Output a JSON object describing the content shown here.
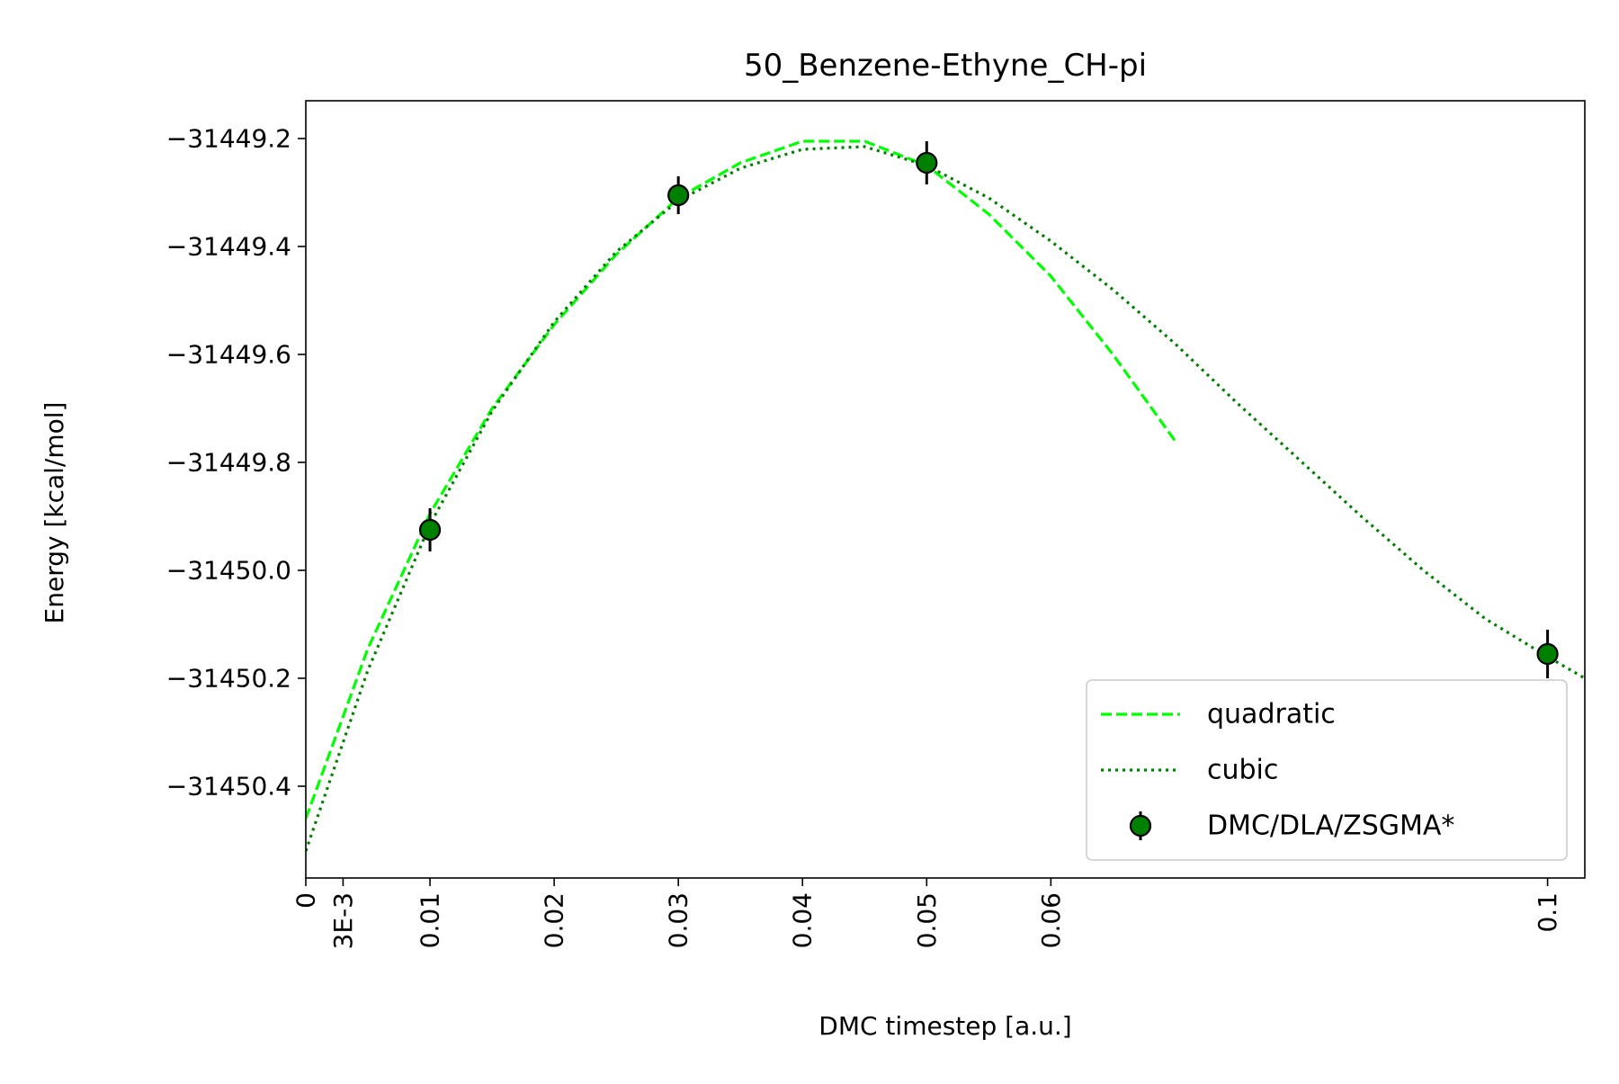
{
  "chart_data": {
    "type": "line",
    "title": "50_Benzene-Ethyne_CH-pi",
    "xlabel": "DMC timestep [a.u.]",
    "ylabel": "Energy [kcal/mol]",
    "xlim": [
      0,
      0.103
    ],
    "ylim": [
      -31450.57,
      -31449.13
    ],
    "grid": false,
    "legend_placement": "lower-right",
    "x_ticks": [
      {
        "value": 0,
        "label": "0"
      },
      {
        "value": 0.003,
        "label": "3E-3"
      },
      {
        "value": 0.01,
        "label": "0.01"
      },
      {
        "value": 0.02,
        "label": "0.02"
      },
      {
        "value": 0.03,
        "label": "0.03"
      },
      {
        "value": 0.04,
        "label": "0.04"
      },
      {
        "value": 0.05,
        "label": "0.05"
      },
      {
        "value": 0.06,
        "label": "0.06"
      },
      {
        "value": 0.1,
        "label": "0.1"
      }
    ],
    "y_ticks": [
      {
        "value": -31449.2,
        "label": "−31449.2"
      },
      {
        "value": -31449.4,
        "label": "−31449.4"
      },
      {
        "value": -31449.6,
        "label": "−31449.6"
      },
      {
        "value": -31449.8,
        "label": "−31449.8"
      },
      {
        "value": -31450.0,
        "label": "−31450.0"
      },
      {
        "value": -31450.2,
        "label": "−31450.2"
      },
      {
        "value": -31450.4,
        "label": "−31450.4"
      }
    ],
    "series": [
      {
        "name": "quadratic",
        "kind": "line",
        "style": "dashed",
        "color": "#00ff00",
        "x": [
          0,
          0.005,
          0.01,
          0.015,
          0.02,
          0.025,
          0.03,
          0.035,
          0.04,
          0.045,
          0.05,
          0.055,
          0.06,
          0.065,
          0.07
        ],
        "y": [
          -31450.46,
          -31450.145,
          -31449.895,
          -31449.7,
          -31449.545,
          -31449.415,
          -31449.31,
          -31449.245,
          -31449.205,
          -31449.205,
          -31449.25,
          -31449.34,
          -31449.455,
          -31449.6,
          -31449.76
        ]
      },
      {
        "name": "cubic",
        "kind": "line",
        "style": "dotted",
        "color": "#008000",
        "x": [
          0,
          0.005,
          0.01,
          0.015,
          0.02,
          0.025,
          0.03,
          0.035,
          0.04,
          0.045,
          0.05,
          0.055,
          0.06,
          0.065,
          0.07,
          0.075,
          0.08,
          0.085,
          0.09,
          0.095,
          0.1,
          0.103
        ],
        "y": [
          -31450.52,
          -31450.185,
          -31449.915,
          -31449.705,
          -31449.54,
          -31449.41,
          -31449.315,
          -31449.255,
          -31449.22,
          -31449.215,
          -31449.25,
          -31449.31,
          -31449.39,
          -31449.48,
          -31449.58,
          -31449.69,
          -31449.795,
          -31449.9,
          -31450.0,
          -31450.09,
          -31450.16,
          -31450.2
        ]
      },
      {
        "name": "DMC/DLA/ZSGMA*",
        "kind": "errorbar",
        "color": "#008000",
        "x": [
          0.01,
          0.03,
          0.05,
          0.1
        ],
        "y": [
          -31449.925,
          -31449.305,
          -31449.245,
          -31450.155
        ],
        "yerr": [
          0.04,
          0.035,
          0.04,
          0.045
        ]
      }
    ]
  }
}
